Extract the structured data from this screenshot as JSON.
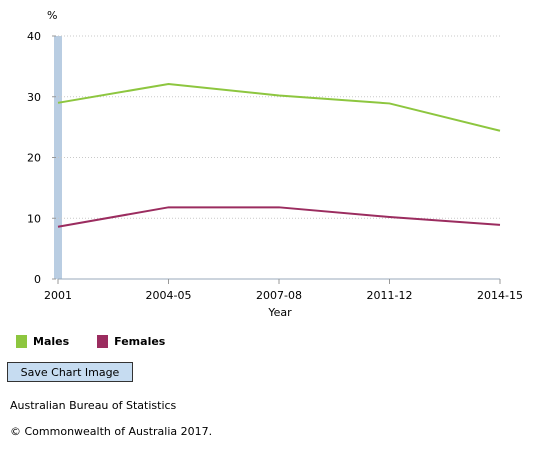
{
  "chart_data": {
    "type": "line",
    "ylabel": "%",
    "xlabel": "Year",
    "categories": [
      "2001",
      "2004-05",
      "2007-08",
      "2011-12",
      "2014-15"
    ],
    "ylim": [
      0,
      40
    ],
    "yticks": [
      0,
      10,
      20,
      30,
      40
    ],
    "grid": true,
    "legend_position": "bottom-left",
    "series": [
      {
        "name": "Males",
        "color": "#8dc63f",
        "values": [
          29.0,
          32.1,
          30.2,
          28.9,
          24.4
        ]
      },
      {
        "name": "Females",
        "color": "#9b2c5f",
        "values": [
          8.6,
          11.8,
          11.8,
          10.2,
          8.9
        ]
      }
    ]
  },
  "controls": {
    "save_label": "Save Chart Image"
  },
  "footer": {
    "source": "Australian Bureau of Statistics",
    "copyright": "© Commonwealth of Australia 2017."
  }
}
